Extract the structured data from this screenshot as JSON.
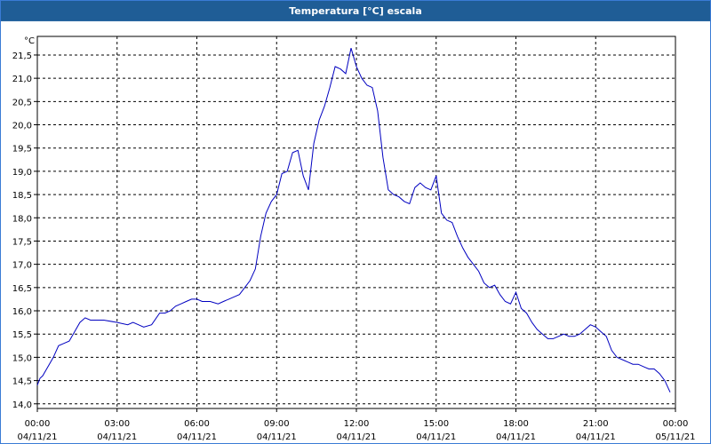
{
  "window": {
    "title": "Temperatura [°C] escala"
  },
  "colors": {
    "titlebar": "#1f5d96",
    "line": "#0000c0",
    "grid": "#000000",
    "background": "#ffffff"
  },
  "chart_data": {
    "type": "line",
    "title": "Temperatura [°C] escala",
    "ylabel": "°C",
    "xlabel": "",
    "x_unit": "hours since 04/11/21 00:00",
    "ylim": [
      13.9,
      21.9
    ],
    "xlim": [
      0,
      24
    ],
    "grid": true,
    "y_ticks": [
      "14,0",
      "14,5",
      "15,0",
      "15,5",
      "16,0",
      "16,5",
      "17,0",
      "17,5",
      "18,0",
      "18,5",
      "19,0",
      "19,5",
      "20,0",
      "20,5",
      "21,0",
      "21,5"
    ],
    "y_tick_values": [
      14.0,
      14.5,
      15.0,
      15.5,
      16.0,
      16.5,
      17.0,
      17.5,
      18.0,
      18.5,
      19.0,
      19.5,
      20.0,
      20.5,
      21.0,
      21.5
    ],
    "x_ticks": [
      {
        "time": "00:00",
        "date": "04/11/21"
      },
      {
        "time": "03:00",
        "date": "04/11/21"
      },
      {
        "time": "06:00",
        "date": "04/11/21"
      },
      {
        "time": "09:00",
        "date": "04/11/21"
      },
      {
        "time": "12:00",
        "date": "04/11/21"
      },
      {
        "time": "15:00",
        "date": "04/11/21"
      },
      {
        "time": "18:00",
        "date": "04/11/21"
      },
      {
        "time": "21:00",
        "date": "04/11/21"
      },
      {
        "time": "00:00",
        "date": "05/11/21"
      }
    ],
    "series": [
      {
        "name": "",
        "x": [
          0,
          0.1,
          0.2,
          0.4,
          0.6,
          0.8,
          1.0,
          1.2,
          1.4,
          1.6,
          1.8,
          2.0,
          2.2,
          2.5,
          3.0,
          3.4,
          3.6,
          3.8,
          4.0,
          4.3,
          4.6,
          4.8,
          5.0,
          5.2,
          5.4,
          5.6,
          5.8,
          6.0,
          6.2,
          6.5,
          6.8,
          7.0,
          7.2,
          7.4,
          7.6,
          7.8,
          8.0,
          8.2,
          8.4,
          8.6,
          8.8,
          9.0,
          9.2,
          9.4,
          9.6,
          9.8,
          10.0,
          10.2,
          10.4,
          10.6,
          10.8,
          11.0,
          11.2,
          11.4,
          11.6,
          11.8,
          12.0,
          12.2,
          12.4,
          12.6,
          12.8,
          13.0,
          13.2,
          13.4,
          13.6,
          13.8,
          14.0,
          14.2,
          14.4,
          14.6,
          14.8,
          15.0,
          15.2,
          15.4,
          15.6,
          15.8,
          16.0,
          16.2,
          16.4,
          16.6,
          16.8,
          17.0,
          17.2,
          17.4,
          17.6,
          17.8,
          18.0,
          18.2,
          18.4,
          18.6,
          18.8,
          19.0,
          19.2,
          19.4,
          19.6,
          19.8,
          20.0,
          20.2,
          20.4,
          20.6,
          20.8,
          21.0,
          21.2,
          21.4,
          21.6,
          21.8,
          22.0,
          22.2,
          22.4,
          22.6,
          22.8,
          23.0,
          23.2,
          23.4,
          23.6,
          23.8
        ],
        "values": [
          14.4,
          14.55,
          14.6,
          14.8,
          15.0,
          15.25,
          15.3,
          15.35,
          15.55,
          15.75,
          15.85,
          15.8,
          15.8,
          15.8,
          15.75,
          15.7,
          15.75,
          15.7,
          15.65,
          15.7,
          15.95,
          15.95,
          16.0,
          16.1,
          16.15,
          16.2,
          16.25,
          16.25,
          16.2,
          16.2,
          16.15,
          16.2,
          16.25,
          16.3,
          16.35,
          16.5,
          16.65,
          16.9,
          17.6,
          18.1,
          18.35,
          18.5,
          18.95,
          19.0,
          19.4,
          19.45,
          18.9,
          18.6,
          19.6,
          20.1,
          20.4,
          20.8,
          21.25,
          21.2,
          21.1,
          21.65,
          21.25,
          21.0,
          20.85,
          20.8,
          20.3,
          19.3,
          18.6,
          18.5,
          18.45,
          18.35,
          18.3,
          18.65,
          18.75,
          18.65,
          18.6,
          18.9,
          18.1,
          17.95,
          17.9,
          17.6,
          17.35,
          17.15,
          17.0,
          16.85,
          16.6,
          16.5,
          16.55,
          16.35,
          16.2,
          16.15,
          16.4,
          16.05,
          15.95,
          15.75,
          15.6,
          15.5,
          15.4,
          15.4,
          15.45,
          15.5,
          15.45,
          15.45,
          15.5,
          15.6,
          15.7,
          15.65,
          15.55,
          15.45,
          15.15,
          15.0,
          14.95,
          14.9,
          14.85,
          14.85,
          14.8,
          14.75,
          14.75,
          14.65,
          14.5,
          14.25
        ]
      }
    ]
  }
}
